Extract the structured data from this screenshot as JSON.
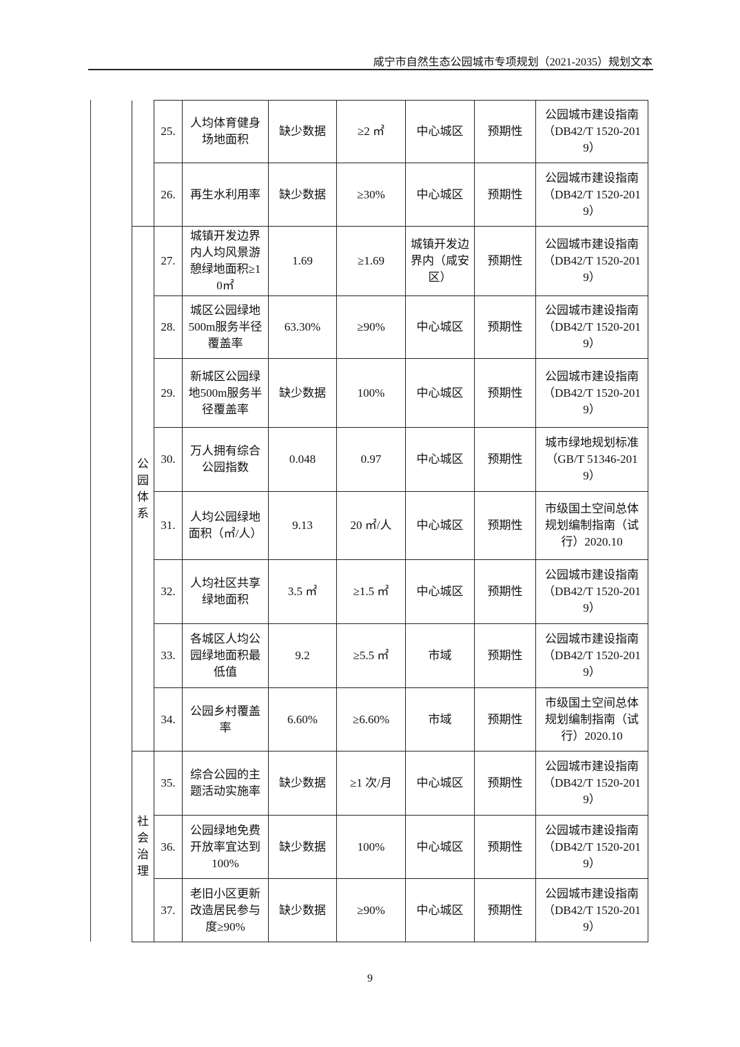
{
  "header": {
    "title": "咸宁市自然生态公园城市专项规划（2021-2035）规划文本"
  },
  "table": {
    "groups": [
      {
        "label": ""
      },
      {
        "label": "公园体系"
      },
      {
        "label": "社会治理"
      }
    ],
    "rows": [
      {
        "no": "25.",
        "name": "人均体育健身场地面积",
        "current": "缺少数据",
        "target": "≥2 ㎡",
        "scope": "中心城区",
        "nature": "预期性",
        "source": "公园城市建设指南（DB42/T 1520-2019）"
      },
      {
        "no": "26.",
        "name": "再生水利用率",
        "current": "缺少数据",
        "target": "≥30%",
        "scope": "中心城区",
        "nature": "预期性",
        "source": "公园城市建设指南（DB42/T 1520-2019）"
      },
      {
        "no": "27.",
        "name": "城镇开发边界内人均风景游憩绿地面积≥10㎡",
        "current": "1.69",
        "target": "≥1.69",
        "scope": "城镇开发边界内（咸安区）",
        "nature": "预期性",
        "source": "公园城市建设指南（DB42/T 1520-2019）"
      },
      {
        "no": "28.",
        "name": "城区公园绿地500m服务半径覆盖率",
        "current": "63.30%",
        "target": "≥90%",
        "scope": "中心城区",
        "nature": "预期性",
        "source": "公园城市建设指南（DB42/T 1520-2019）"
      },
      {
        "no": "29.",
        "name": "新城区公园绿地500m服务半径覆盖率",
        "current": "缺少数据",
        "target": "100%",
        "scope": "中心城区",
        "nature": "预期性",
        "source": "公园城市建设指南（DB42/T 1520-2019）"
      },
      {
        "no": "30.",
        "name": "万人拥有综合公园指数",
        "current": "0.048",
        "target": "0.97",
        "scope": "中心城区",
        "nature": "预期性",
        "source": "城市绿地规划标准（GB/T 51346-2019）"
      },
      {
        "no": "31.",
        "name": "人均公园绿地面积（㎡/人）",
        "current": "9.13",
        "target": "20 ㎡/人",
        "scope": "中心城区",
        "nature": "预期性",
        "source": "市级国土空间总体规划编制指南（试行）2020.10"
      },
      {
        "no": "32.",
        "name": "人均社区共享绿地面积",
        "current": "3.5 ㎡",
        "target": "≥1.5 ㎡",
        "scope": "中心城区",
        "nature": "预期性",
        "source": "公园城市建设指南（DB42/T 1520-2019）"
      },
      {
        "no": "33.",
        "name": "各城区人均公园绿地面积最低值",
        "current": "9.2",
        "target": "≥5.5 ㎡",
        "scope": "市域",
        "nature": "预期性",
        "source": "公园城市建设指南（DB42/T 1520-2019）"
      },
      {
        "no": "34.",
        "name": "公园乡村覆盖率",
        "current": "6.60%",
        "target": "≥6.60%",
        "scope": "市域",
        "nature": "预期性",
        "source": "市级国土空间总体规划编制指南（试行）2020.10"
      },
      {
        "no": "35.",
        "name": "综合公园的主题活动实施率",
        "current": "缺少数据",
        "target": "≥1 次/月",
        "scope": "中心城区",
        "nature": "预期性",
        "source": "公园城市建设指南（DB42/T 1520-2019）"
      },
      {
        "no": "36.",
        "name": "公园绿地免费开放率宜达到100%",
        "current": "缺少数据",
        "target": "100%",
        "scope": "中心城区",
        "nature": "预期性",
        "source": "公园城市建设指南（DB42/T 1520-2019）"
      },
      {
        "no": "37.",
        "name": "老旧小区更新改造居民参与度≥90%",
        "current": "缺少数据",
        "target": "≥90%",
        "scope": "中心城区",
        "nature": "预期性",
        "source": "公园城市建设指南（DB42/T 1520-2019）"
      }
    ]
  },
  "footer": {
    "page_number": "9"
  }
}
